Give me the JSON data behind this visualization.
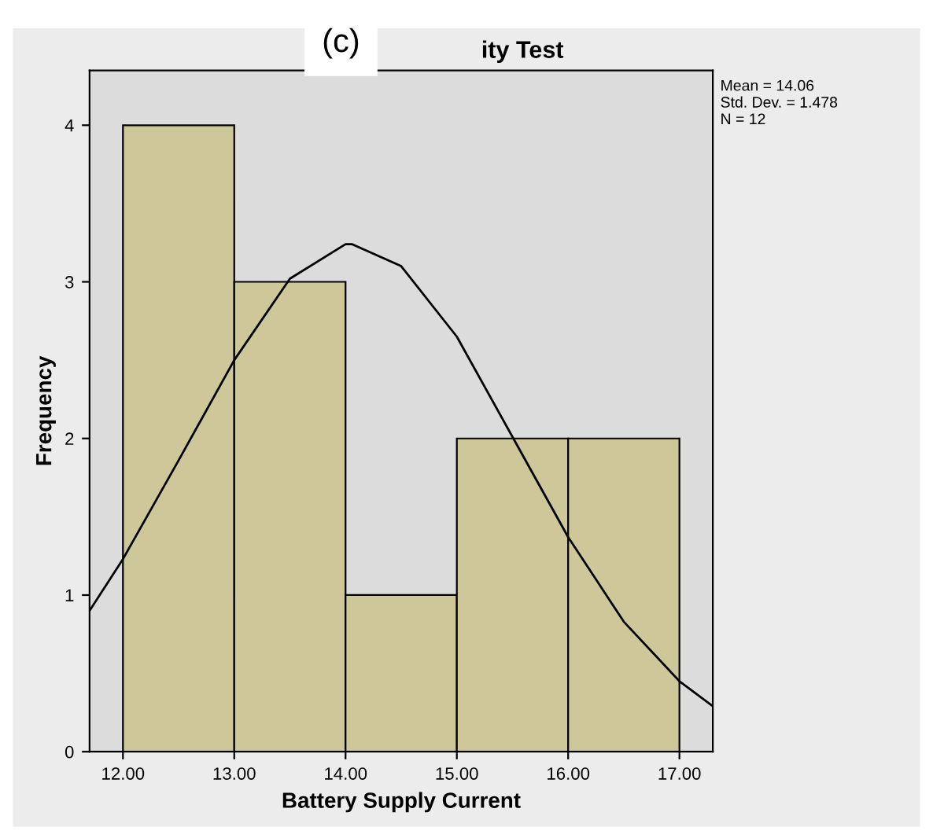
{
  "chart_data": {
    "type": "histogram",
    "title": "(c)",
    "subtitle": "ity Test",
    "xlabel": "Battery Supply Current",
    "ylabel": "Frequency",
    "bins": [
      12,
      13,
      14,
      15,
      16,
      17
    ],
    "values": [
      4,
      3,
      1,
      2,
      2
    ],
    "color": "#cdc799",
    "series": [
      {
        "type": "line",
        "color": "#000000",
        "x": [
          11.7,
          12,
          12.5,
          13,
          13.5,
          14,
          14.06,
          14.5,
          15,
          15.5,
          16,
          16.5,
          17,
          17.3
        ],
        "values": [
          0.9,
          1.23,
          1.86,
          2.5,
          3.02,
          3.24,
          3.24,
          3.1,
          2.65,
          2.01,
          1.37,
          0.83,
          0.45,
          0.29
        ]
      }
    ],
    "xlim": [
      11.7,
      17.3
    ],
    "ylim": [
      0,
      4.35
    ],
    "xticks": [
      {
        "value": 12,
        "label": "12.00"
      },
      {
        "value": 13,
        "label": "13.00"
      },
      {
        "value": 14,
        "label": "14.00"
      },
      {
        "value": 15,
        "label": "15.00"
      },
      {
        "value": 16,
        "label": "16.00"
      },
      {
        "value": 17,
        "label": "17.00"
      }
    ],
    "yticks": [
      0,
      1,
      2,
      3,
      4
    ],
    "annotations": [
      "Mean = 14.06",
      "Std. Dev. = 1.478",
      "N = 12"
    ],
    "grid": false,
    "legend": false
  }
}
